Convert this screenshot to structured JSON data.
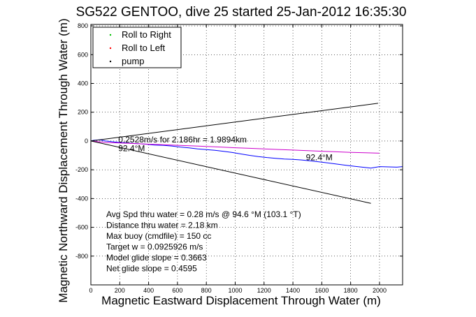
{
  "chart_data": {
    "type": "line",
    "title": "SG522 GENTOO, dive 25 started 25-Jan-2012 16:35:30",
    "xlabel": "Magnetic Eastward Displacement Through Water (m)",
    "ylabel": "Magnetic Northward Displacement Through Water (m)",
    "xlim": [
      0,
      2160
    ],
    "ylim": [
      -1000,
      810
    ],
    "xticks": [
      0,
      200,
      400,
      600,
      800,
      1000,
      1200,
      1400,
      1600,
      1800,
      2000
    ],
    "yticks": [
      -800,
      -600,
      -400,
      -200,
      0,
      200,
      400,
      600,
      800
    ],
    "grid": true,
    "legend": {
      "placement": "top-left",
      "entries": [
        {
          "label": "Roll to Right",
          "color": "#00c000",
          "marker": "."
        },
        {
          "label": "Roll to Left",
          "color": "#ff0000",
          "marker": "."
        },
        {
          "label": "pump",
          "color": "#000000",
          "marker": "."
        }
      ]
    },
    "series": [
      {
        "color": "#0000ff",
        "x": [
          0,
          20,
          60,
          100,
          150,
          200,
          260,
          320,
          380,
          440,
          500,
          560,
          620,
          680,
          740,
          800,
          860,
          920,
          980,
          1040,
          1100,
          1160,
          1220,
          1280,
          1340,
          1400,
          1460,
          1520,
          1580,
          1640,
          1700,
          1760,
          1820,
          1880,
          1940,
          2000,
          2060,
          2120,
          2160
        ],
        "y": [
          0,
          5,
          8,
          0,
          -5,
          -10,
          -15,
          -18,
          -22,
          -28,
          -30,
          -35,
          -42,
          -48,
          -55,
          -60,
          -65,
          -72,
          -80,
          -90,
          -100,
          -108,
          -115,
          -120,
          -125,
          -128,
          -132,
          -138,
          -145,
          -152,
          -160,
          -168,
          -175,
          -182,
          -188,
          -178,
          -180,
          -182,
          -178
        ]
      },
      {
        "color": "#cc00cc",
        "x": [
          0,
          100,
          200,
          300,
          400,
          500,
          600,
          700,
          800,
          900,
          1000,
          1100,
          1200,
          1300,
          1400,
          1500,
          1600,
          1700,
          1800,
          1900,
          1998
        ],
        "y": [
          0,
          -10,
          -14,
          -18,
          -22,
          -26,
          -30,
          -34,
          -38,
          -42,
          -47,
          -51,
          -55,
          -59,
          -63,
          -67,
          -71,
          -75,
          -79,
          -82,
          -85
        ]
      },
      {
        "color": "#000000",
        "x": [
          0,
          1990
        ],
        "y": [
          0,
          262
        ]
      },
      {
        "color": "#000000",
        "x": [
          0,
          1940
        ],
        "y": [
          0,
          -433
        ]
      }
    ],
    "annotations": [
      {
        "text": "0.2528m/s for 2.186hr = 1.9894km",
        "x": 190,
        "y": -10
      },
      {
        "text": "92.4°M",
        "x": 190,
        "y": -70
      },
      {
        "text": "92.4°M",
        "x": 1490,
        "y": -135
      }
    ],
    "info_lines": [
      "Avg Spd thru water =  0.28 m/s @  94.6   °M (103.1 °T)",
      "Distance thru water =  2.18 km",
      "Max buoy (cmdfile) = 150 cc",
      "Target w = 0.0925926 m/s",
      "Model glide slope = 0.3663",
      "Net glide slope = 0.4595"
    ]
  }
}
